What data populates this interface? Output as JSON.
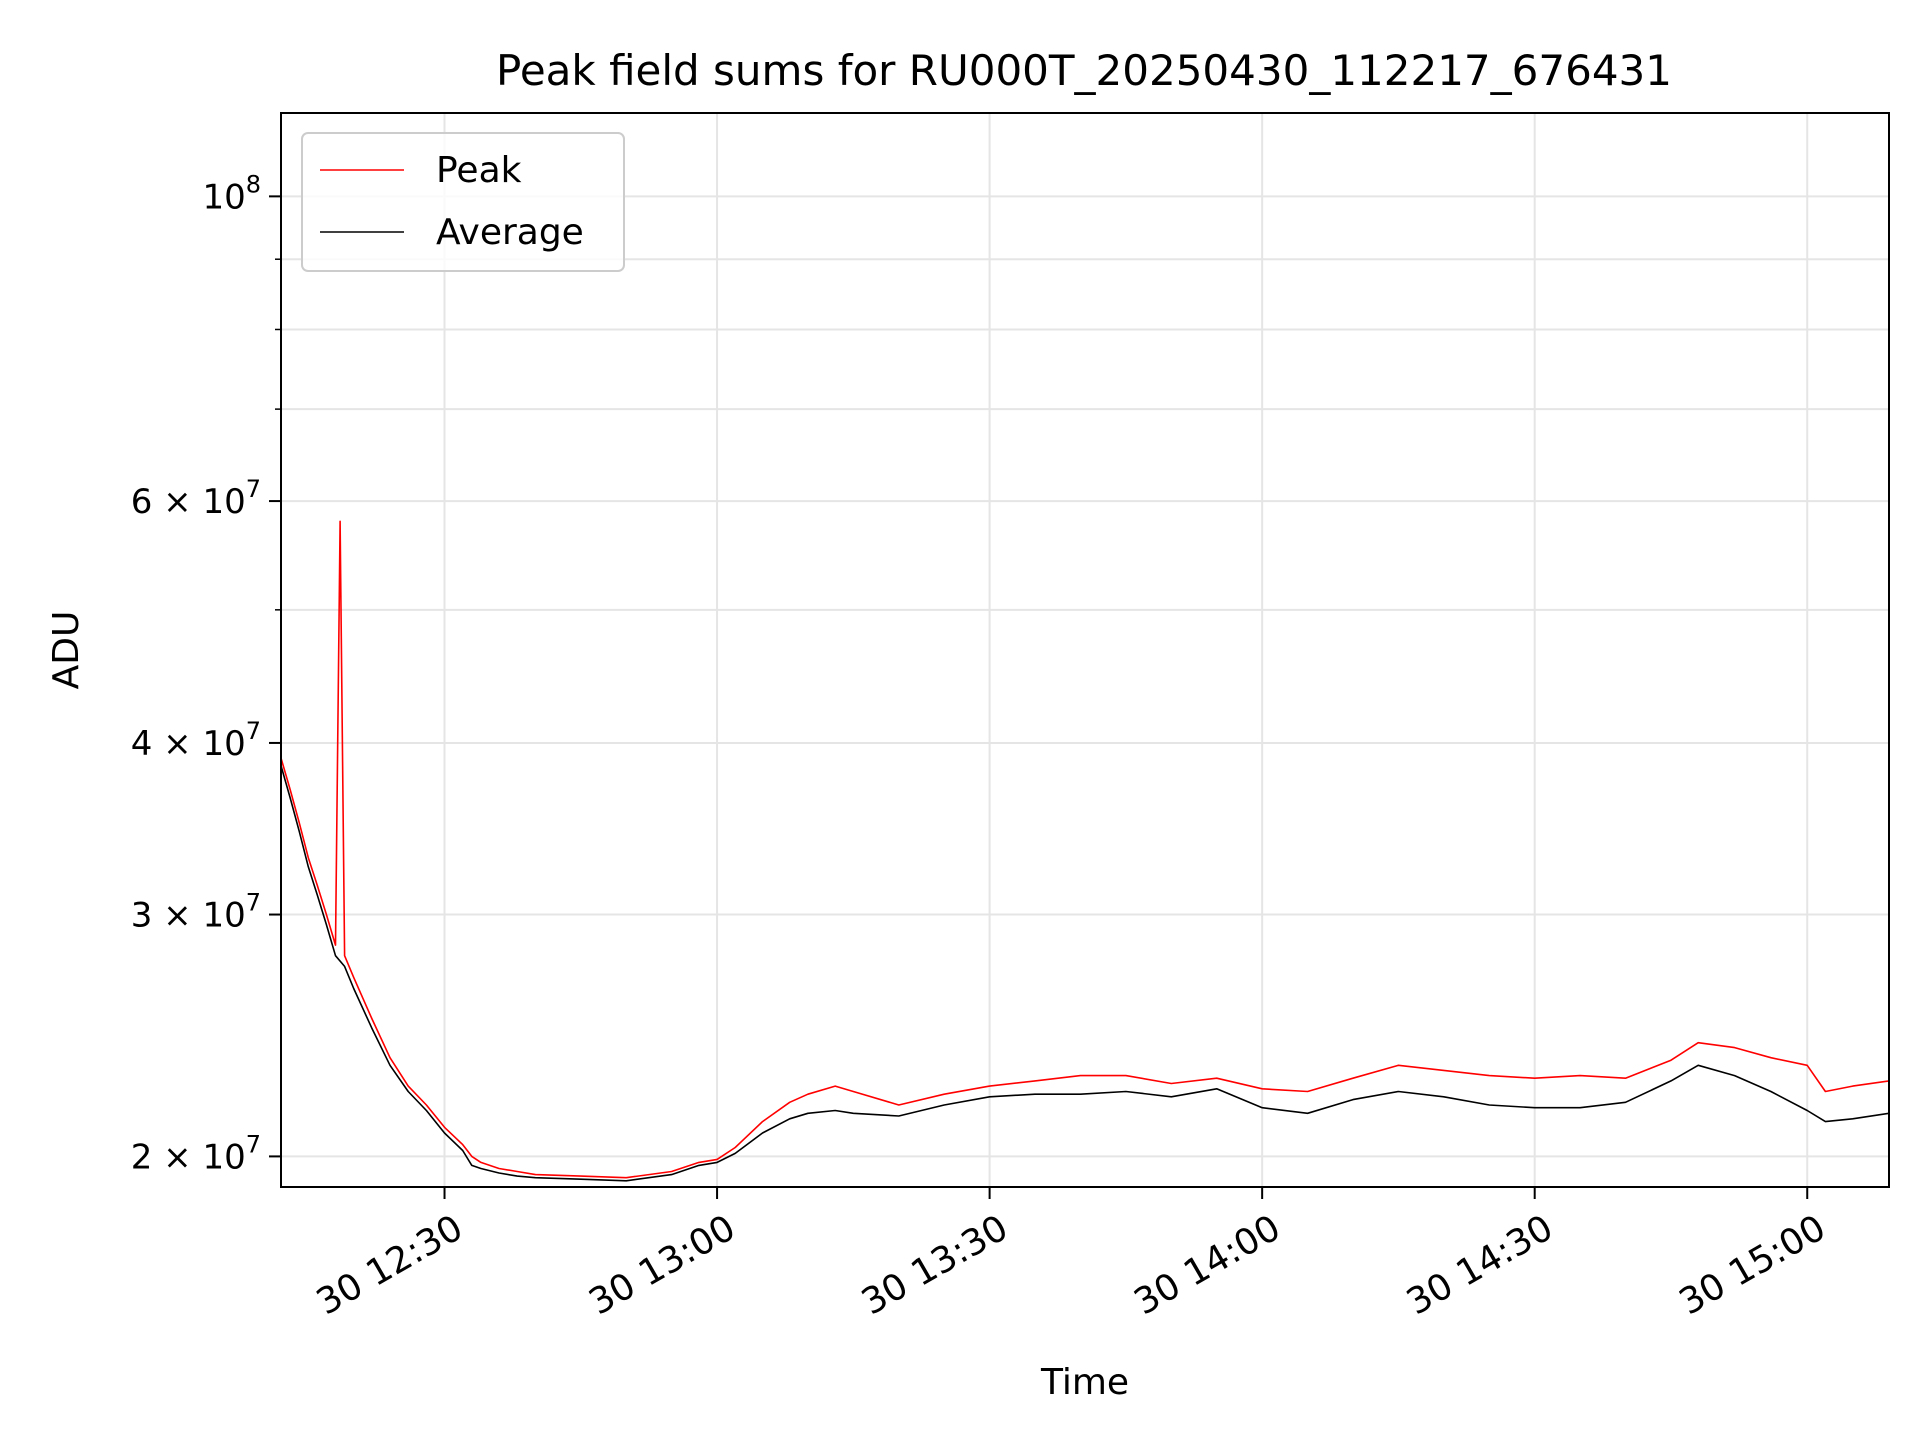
{
  "chart_data": {
    "type": "line",
    "title": "Peak field sums for RU000T_20250430_112217_676431",
    "xlabel": "Time",
    "ylabel": "ADU",
    "yscale": "log",
    "xlim": [
      "2025-04-30 12:12",
      "2025-04-30 15:09"
    ],
    "ylim": [
      19000000,
      115000000
    ],
    "grid": true,
    "legend_position": "top-left",
    "x_ticks": [
      {
        "value": "2025-04-30 12:30",
        "label": "30 12:30"
      },
      {
        "value": "2025-04-30 13:00",
        "label": "30 13:00"
      },
      {
        "value": "2025-04-30 13:30",
        "label": "30 13:30"
      },
      {
        "value": "2025-04-30 14:00",
        "label": "30 14:00"
      },
      {
        "value": "2025-04-30 14:30",
        "label": "30 14:30"
      },
      {
        "value": "2025-04-30 15:00",
        "label": "30 15:00"
      }
    ],
    "y_ticks": [
      {
        "value": 20000000,
        "mantissa": "2",
        "exp": "7"
      },
      {
        "value": 30000000,
        "mantissa": "3",
        "exp": "7"
      },
      {
        "value": 40000000,
        "mantissa": "4",
        "exp": "7"
      },
      {
        "value": 60000000,
        "mantissa": "6",
        "exp": "7"
      },
      {
        "value": 100000000,
        "mantissa": "",
        "exp": "8"
      }
    ],
    "y_minor_ticks": [
      50000000,
      70000000,
      80000000,
      90000000
    ],
    "series": [
      {
        "name": "Peak",
        "color": "#ff0000",
        "x": [
          "2025-04-30 12:12:00",
          "2025-04-30 12:13:00",
          "2025-04-30 12:14:00",
          "2025-04-30 12:15:00",
          "2025-04-30 12:16:00",
          "2025-04-30 12:17:00",
          "2025-04-30 12:18:00",
          "2025-04-30 12:18:30",
          "2025-04-30 12:19:00",
          "2025-04-30 12:20:00",
          "2025-04-30 12:22:00",
          "2025-04-30 12:24:00",
          "2025-04-30 12:26:00",
          "2025-04-30 12:28:00",
          "2025-04-30 12:30:00",
          "2025-04-30 12:32:00",
          "2025-04-30 12:33:00",
          "2025-04-30 12:34:00",
          "2025-04-30 12:36:00",
          "2025-04-30 12:38:00",
          "2025-04-30 12:40:00",
          "2025-04-30 12:45:00",
          "2025-04-30 12:50:00",
          "2025-04-30 12:55:00",
          "2025-04-30 12:58:00",
          "2025-04-30 13:00:00",
          "2025-04-30 13:02:00",
          "2025-04-30 13:05:00",
          "2025-04-30 13:08:00",
          "2025-04-30 13:10:00",
          "2025-04-30 13:13:00",
          "2025-04-30 13:15:00",
          "2025-04-30 13:20:00",
          "2025-04-30 13:25:00",
          "2025-04-30 13:30:00",
          "2025-04-30 13:35:00",
          "2025-04-30 13:40:00",
          "2025-04-30 13:45:00",
          "2025-04-30 13:50:00",
          "2025-04-30 13:55:00",
          "2025-04-30 14:00:00",
          "2025-04-30 14:05:00",
          "2025-04-30 14:10:00",
          "2025-04-30 14:15:00",
          "2025-04-30 14:20:00",
          "2025-04-30 14:25:00",
          "2025-04-30 14:30:00",
          "2025-04-30 14:35:00",
          "2025-04-30 14:40:00",
          "2025-04-30 14:45:00",
          "2025-04-30 14:48:00",
          "2025-04-30 14:52:00",
          "2025-04-30 14:56:00",
          "2025-04-30 15:00:00",
          "2025-04-30 15:02:00",
          "2025-04-30 15:05:00",
          "2025-04-30 15:09:00"
        ],
        "y": [
          39000000,
          37000000,
          35000000,
          33000000,
          31500000,
          30000000,
          28500000,
          58000000,
          28000000,
          27000000,
          25200000,
          23600000,
          22500000,
          21800000,
          21000000,
          20400000,
          20000000,
          19800000,
          19600000,
          19500000,
          19400000,
          19350000,
          19300000,
          19500000,
          19800000,
          19900000,
          20300000,
          21200000,
          21900000,
          22200000,
          22500000,
          22300000,
          21800000,
          22200000,
          22500000,
          22700000,
          22900000,
          22900000,
          22600000,
          22800000,
          22400000,
          22300000,
          22800000,
          23300000,
          23100000,
          22900000,
          22800000,
          22900000,
          22800000,
          23500000,
          24200000,
          24000000,
          23600000,
          23300000,
          22300000,
          22500000,
          22700000
        ]
      },
      {
        "name": "Average",
        "color": "#000000",
        "x": [
          "2025-04-30 12:12:00",
          "2025-04-30 12:13:00",
          "2025-04-30 12:14:00",
          "2025-04-30 12:15:00",
          "2025-04-30 12:16:00",
          "2025-04-30 12:17:00",
          "2025-04-30 12:18:00",
          "2025-04-30 12:19:00",
          "2025-04-30 12:20:00",
          "2025-04-30 12:22:00",
          "2025-04-30 12:24:00",
          "2025-04-30 12:26:00",
          "2025-04-30 12:28:00",
          "2025-04-30 12:30:00",
          "2025-04-30 12:32:00",
          "2025-04-30 12:33:00",
          "2025-04-30 12:34:00",
          "2025-04-30 12:36:00",
          "2025-04-30 12:38:00",
          "2025-04-30 12:40:00",
          "2025-04-30 12:45:00",
          "2025-04-30 12:50:00",
          "2025-04-30 12:55:00",
          "2025-04-30 12:58:00",
          "2025-04-30 13:00:00",
          "2025-04-30 13:02:00",
          "2025-04-30 13:05:00",
          "2025-04-30 13:08:00",
          "2025-04-30 13:10:00",
          "2025-04-30 13:13:00",
          "2025-04-30 13:15:00",
          "2025-04-30 13:20:00",
          "2025-04-30 13:25:00",
          "2025-04-30 13:30:00",
          "2025-04-30 13:35:00",
          "2025-04-30 13:40:00",
          "2025-04-30 13:45:00",
          "2025-04-30 13:50:00",
          "2025-04-30 13:55:00",
          "2025-04-30 14:00:00",
          "2025-04-30 14:05:00",
          "2025-04-30 14:10:00",
          "2025-04-30 14:15:00",
          "2025-04-30 14:20:00",
          "2025-04-30 14:25:00",
          "2025-04-30 14:30:00",
          "2025-04-30 14:35:00",
          "2025-04-30 14:40:00",
          "2025-04-30 14:45:00",
          "2025-04-30 14:48:00",
          "2025-04-30 14:52:00",
          "2025-04-30 14:56:00",
          "2025-04-30 15:00:00",
          "2025-04-30 15:02:00",
          "2025-04-30 15:05:00",
          "2025-04-30 15:09:00"
        ],
        "y": [
          38500000,
          36500000,
          34500000,
          32500000,
          31000000,
          29500000,
          28000000,
          27500000,
          26500000,
          24800000,
          23300000,
          22300000,
          21600000,
          20800000,
          20200000,
          19700000,
          19600000,
          19450000,
          19350000,
          19300000,
          19250000,
          19200000,
          19400000,
          19700000,
          19800000,
          20100000,
          20800000,
          21300000,
          21500000,
          21600000,
          21500000,
          21400000,
          21800000,
          22100000,
          22200000,
          22200000,
          22300000,
          22100000,
          22400000,
          21700000,
          21500000,
          22000000,
          22300000,
          22100000,
          21800000,
          21700000,
          21700000,
          21900000,
          22700000,
          23300000,
          22900000,
          22300000,
          21600000,
          21200000,
          21300000,
          21500000
        ]
      }
    ]
  }
}
